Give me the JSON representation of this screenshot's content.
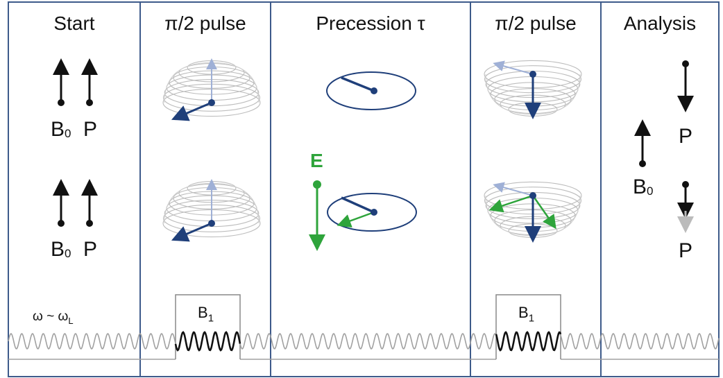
{
  "panels": [
    {
      "title": "Start"
    },
    {
      "title": "π/2 pulse"
    },
    {
      "title": "Precession τ"
    },
    {
      "title": "π/2 pulse"
    },
    {
      "title": "Analysis"
    }
  ],
  "labels": {
    "b0_main": "B",
    "b0_sub": "0",
    "p": "P",
    "b1_main": "B",
    "b1_sub": "1",
    "e_field": "E",
    "omega": "ω ~ ω",
    "omega_sub": "L"
  },
  "colors": {
    "frame": "#3d5a8a",
    "spin_dark_blue": "#1f3f7a",
    "spin_light_blue": "#9fb0d6",
    "electric_green": "#2ea43b",
    "wave_light": "#a0a0a0",
    "wave_dark": "#111111"
  }
}
